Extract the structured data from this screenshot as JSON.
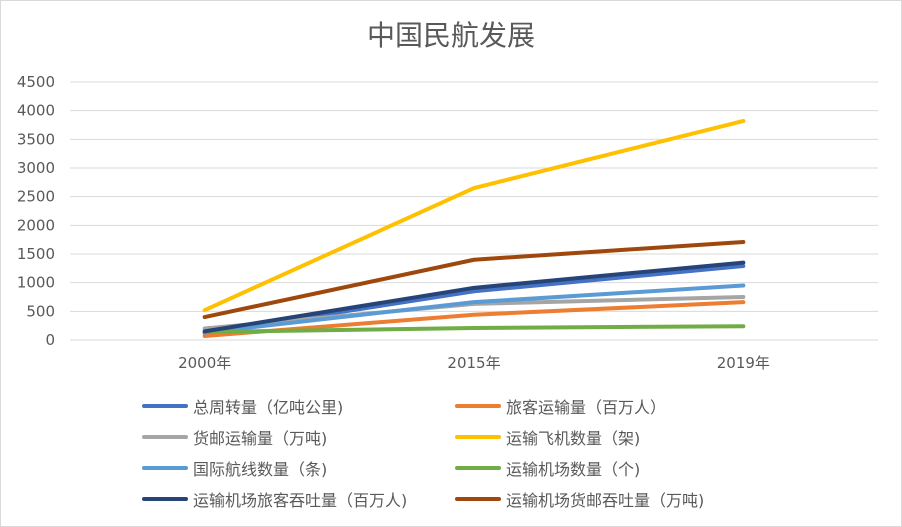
{
  "chart_data": {
    "type": "line",
    "title": "中国民航发展",
    "categories": [
      "2000年",
      "2015年",
      "2019年"
    ],
    "ylim": [
      0,
      4500
    ],
    "yticks": [
      0,
      500,
      1000,
      1500,
      2000,
      2500,
      3000,
      3500,
      4000,
      4500
    ],
    "grid": true,
    "legend_position": "bottom",
    "series": [
      {
        "name": "总周转量（亿吨公里)",
        "color": "#4472C4",
        "values": [
          120,
          850,
          1290
        ]
      },
      {
        "name": "旅客运输量（百万人）",
        "color": "#ED7D31",
        "values": [
          70,
          440,
          660
        ]
      },
      {
        "name": "货邮运输量（万吨)",
        "color": "#A5A5A5",
        "values": [
          200,
          630,
          750
        ]
      },
      {
        "name": "运输飞机数量（架)",
        "color": "#FFC000",
        "values": [
          520,
          2650,
          3820
        ]
      },
      {
        "name": "国际航线数量（条)",
        "color": "#5B9BD5",
        "values": [
          130,
          660,
          950
        ]
      },
      {
        "name": "运输机场数量（个)",
        "color": "#70AD47",
        "values": [
          140,
          210,
          240
        ]
      },
      {
        "name": "运输机场旅客吞吐量（百万人)",
        "color": "#264478",
        "values": [
          150,
          910,
          1350
        ]
      },
      {
        "name": "运输机场货邮吞吐量（万吨)",
        "color": "#9E480E",
        "values": [
          400,
          1400,
          1710
        ]
      }
    ]
  }
}
